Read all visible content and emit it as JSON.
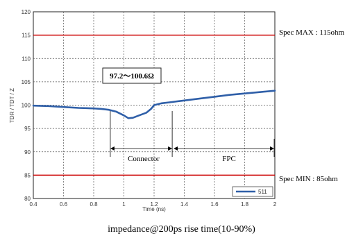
{
  "chart_data": {
    "type": "line",
    "title": "",
    "xlabel": "Time (ns)",
    "ylabel": "TDR / TDT / Z",
    "xlim": [
      0.4,
      2.0
    ],
    "ylim": [
      80,
      120
    ],
    "xticks": [
      "0.4",
      "0.6",
      "0.8",
      "1",
      "1.2",
      "1.4",
      "1.6",
      "1.8",
      "2"
    ],
    "yticks": [
      "80",
      "85",
      "90",
      "95",
      "100",
      "105",
      "110",
      "115",
      "120"
    ],
    "grid": true,
    "legend": {
      "placement": "bottom-right",
      "entries": [
        "511"
      ]
    },
    "series": [
      {
        "name": "511",
        "color": "#2f5fa8",
        "x": [
          0.4,
          0.5,
          0.6,
          0.7,
          0.8,
          0.85,
          0.9,
          0.95,
          1.0,
          1.03,
          1.06,
          1.1,
          1.15,
          1.18,
          1.2,
          1.25,
          1.3,
          1.4,
          1.5,
          1.6,
          1.7,
          1.8,
          1.9,
          2.0
        ],
        "y": [
          99.9,
          99.8,
          99.6,
          99.4,
          99.3,
          99.2,
          99.0,
          98.6,
          97.8,
          97.2,
          97.3,
          97.8,
          98.4,
          99.2,
          100.0,
          100.4,
          100.6,
          101.0,
          101.4,
          101.8,
          102.2,
          102.5,
          102.8,
          103.1
        ]
      }
    ],
    "reference_lines": [
      {
        "value": 115,
        "color": "#cc0000",
        "label": "Spec MAX : 115ohm"
      },
      {
        "value": 85,
        "color": "#cc0000",
        "label": "Spec MIN : 85ohm"
      }
    ],
    "annotations": {
      "impedance_box": "97.2～100.6Ω",
      "connector_label": "Connector",
      "fpc_label": "FPC",
      "connector_range": [
        0.91,
        1.32
      ],
      "fpc_range": [
        1.32,
        2.0
      ]
    }
  },
  "caption": "impedance@200ps rise time(10-90%)"
}
